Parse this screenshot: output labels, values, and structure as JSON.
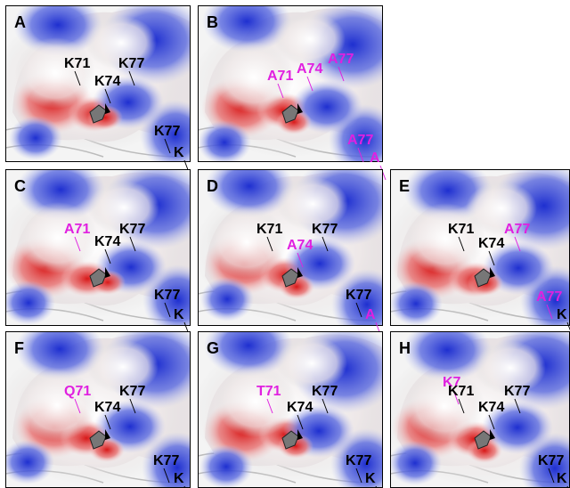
{
  "panels": [
    {
      "letter": "A",
      "labels": [
        {
          "text": "K71",
          "color": "#000000"
        },
        {
          "text": "K77",
          "color": "#000000"
        },
        {
          "text": "K74",
          "color": "#000000"
        },
        {
          "text": "K77",
          "color": "#000000"
        },
        {
          "text": "K",
          "color": "#000000"
        }
      ]
    },
    {
      "letter": "B",
      "labels": [
        {
          "text": "A71",
          "color": "#e020e0"
        },
        {
          "text": "A74",
          "color": "#e020e0"
        },
        {
          "text": "A77",
          "color": "#e020e0"
        },
        {
          "text": "A77",
          "color": "#e020e0"
        },
        {
          "text": "A",
          "color": "#e020e0"
        }
      ]
    },
    {
      "letter": "C",
      "labels": [
        {
          "text": "A71",
          "color": "#e020e0"
        },
        {
          "text": "K77",
          "color": "#000000"
        },
        {
          "text": "K74",
          "color": "#000000"
        },
        {
          "text": "K77",
          "color": "#000000"
        },
        {
          "text": "K",
          "color": "#000000"
        }
      ]
    },
    {
      "letter": "D",
      "labels": [
        {
          "text": "K71",
          "color": "#000000"
        },
        {
          "text": "K77",
          "color": "#000000"
        },
        {
          "text": "A74",
          "color": "#e020e0"
        },
        {
          "text": "K77",
          "color": "#000000"
        },
        {
          "text": "A",
          "color": "#e020e0"
        }
      ]
    },
    {
      "letter": "E",
      "labels": [
        {
          "text": "K71",
          "color": "#000000"
        },
        {
          "text": "A77",
          "color": "#e020e0"
        },
        {
          "text": "K74",
          "color": "#000000"
        },
        {
          "text": "A77",
          "color": "#e020e0"
        },
        {
          "text": "K",
          "color": "#000000"
        }
      ]
    },
    {
      "letter": "F",
      "labels": [
        {
          "text": "Q71",
          "color": "#e020e0"
        },
        {
          "text": "K77",
          "color": "#000000"
        },
        {
          "text": "K74",
          "color": "#000000"
        },
        {
          "text": "K77",
          "color": "#000000"
        },
        {
          "text": "K",
          "color": "#000000"
        }
      ]
    },
    {
      "letter": "G",
      "labels": [
        {
          "text": "T71",
          "color": "#e020e0"
        },
        {
          "text": "K77",
          "color": "#000000"
        },
        {
          "text": "K74",
          "color": "#000000"
        },
        {
          "text": "K77",
          "color": "#000000"
        },
        {
          "text": "K",
          "color": "#000000"
        }
      ]
    },
    {
      "letter": "H",
      "labels": [
        {
          "text": "K7",
          "color": "#e020e0"
        },
        {
          "text": "K71",
          "color": "#000000"
        },
        {
          "text": "K77",
          "color": "#000000"
        },
        {
          "text": "K74",
          "color": "#000000"
        },
        {
          "text": "K77",
          "color": "#000000"
        },
        {
          "text": "K",
          "color": "#000000"
        }
      ]
    }
  ]
}
